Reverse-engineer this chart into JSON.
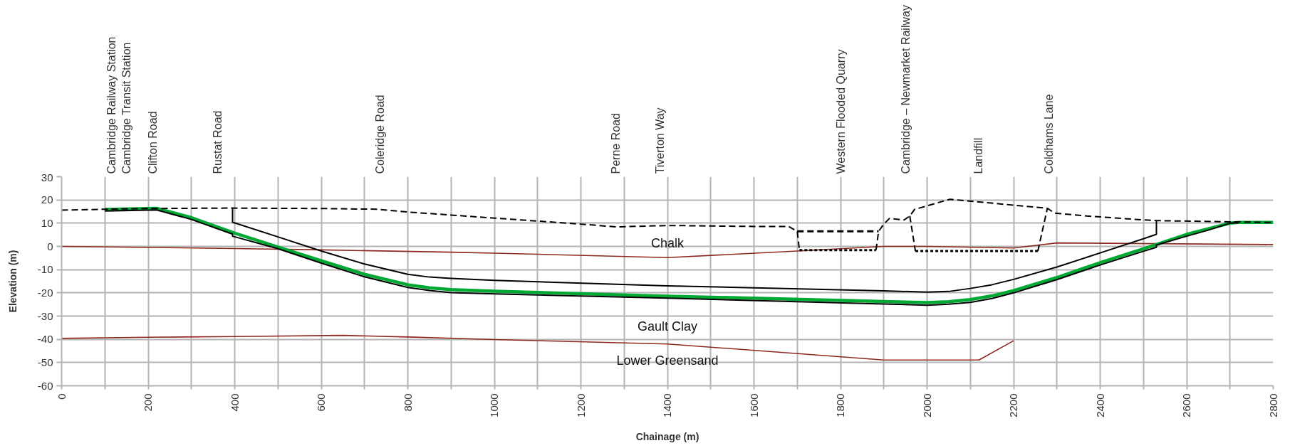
{
  "chart_data": {
    "type": "line",
    "xlabel": "Chainage (m)",
    "ylabel": "Elevation (m)",
    "xlim": [
      0,
      2800
    ],
    "ylim": [
      -60,
      30
    ],
    "xticks": [
      0,
      {
        "value": 100,
        "label": null
      },
      200,
      {
        "value": 300,
        "label": null
      },
      400,
      {
        "value": 500,
        "label": null
      },
      600,
      {
        "value": 700,
        "label": null
      },
      800,
      {
        "value": 900,
        "label": null
      },
      1000,
      {
        "value": 1100,
        "label": null
      },
      1200,
      {
        "value": 1300,
        "label": null
      },
      1400,
      {
        "value": 1500,
        "label": null
      },
      1600,
      {
        "value": 1700,
        "label": null
      },
      1800,
      {
        "value": 1900,
        "label": null
      },
      2000,
      {
        "value": 2100,
        "label": null
      },
      2200,
      {
        "value": 2300,
        "label": null
      },
      2400,
      {
        "value": 2500,
        "label": null
      },
      2600,
      {
        "value": 2700,
        "label": null
      },
      2800
    ],
    "yticks": [
      -60,
      -50,
      -40,
      -30,
      -20,
      -10,
      0,
      10,
      20,
      30
    ],
    "grid": true,
    "series": [
      {
        "color": "#8d281e",
        "line_style": "solid",
        "x": [
          0,
          400,
          600,
          900,
          1000,
          1400,
          1700,
          1900,
          2000,
          2200,
          2300,
          2800
        ],
        "values": [
          0,
          -0.9,
          -1.5,
          -2.5,
          -2.9,
          -4.8,
          -2.0,
          0,
          0,
          -0.7,
          1.5,
          0.8
        ]
      },
      {
        "color": "#8d281e",
        "line_style": "solid",
        "x": [
          0,
          200,
          400,
          650,
          800,
          1000,
          1400,
          1900,
          2120,
          2200
        ],
        "values": [
          -39.6,
          -39.1,
          -38.8,
          -38.3,
          -39.0,
          -40.1,
          -42.0,
          -48.9,
          -48.9,
          -40.6
        ]
      },
      {
        "color": "#00a933",
        "line_style": "solid",
        "x": [
          100,
          220,
          300,
          400,
          500,
          600,
          700,
          800,
          850,
          900,
          1000,
          1400,
          1900,
          2000,
          2050,
          2100,
          2150,
          2200,
          2300,
          2400,
          2500,
          2530,
          2600,
          2650,
          2700,
          2720,
          2800
        ],
        "values": [
          15.9,
          16.4,
          12.4,
          5.7,
          -0.3,
          -6.2,
          -12.0,
          -16.5,
          -17.8,
          -18.6,
          -19.3,
          -21.4,
          -23.7,
          -24.2,
          -23.8,
          -22.9,
          -21.3,
          -19.0,
          -13.4,
          -7.0,
          -1.0,
          0.8,
          5.2,
          7.6,
          10.0,
          10.3,
          10.3
        ]
      },
      {
        "color": "#000000",
        "line_style": "solid",
        "x": [
          100,
          220,
          300,
          395,
          395,
          500,
          600,
          700,
          800,
          850,
          900,
          1000,
          1400,
          1900,
          2000,
          2050,
          2100,
          2150,
          2200,
          2300,
          2400,
          2500,
          2530,
          2530,
          2600,
          2650,
          2700,
          2720
        ],
        "values": [
          15.2,
          15.7,
          11.6,
          5.3,
          4.4,
          -1.0,
          -7.2,
          -13.1,
          -17.7,
          -19.0,
          -19.9,
          -20.4,
          -22.3,
          -24.8,
          -25.3,
          -24.9,
          -24.1,
          -22.4,
          -20.0,
          -14.3,
          -8.0,
          -2.1,
          -0.4,
          0.6,
          4.4,
          7.0,
          10.0,
          10.2
        ]
      },
      {
        "color": "#000000",
        "line_style": "solid",
        "x": [
          395,
          395,
          500,
          600,
          700,
          800,
          850,
          900,
          1000,
          1400,
          1900,
          2000,
          2050,
          2100,
          2150,
          2200,
          2300,
          2400,
          2500,
          2530,
          2530
        ],
        "values": [
          16.4,
          10.4,
          4.1,
          -2.0,
          -7.6,
          -12.0,
          -13.2,
          -13.8,
          -14.6,
          -17.0,
          -19.1,
          -19.7,
          -19.4,
          -18.1,
          -16.5,
          -14.2,
          -8.9,
          -2.8,
          3.3,
          5.2,
          10.9
        ]
      },
      {
        "color": "#000000",
        "line_style": "dashed",
        "x": [
          0,
          100,
          200,
          390,
          600,
          730,
          800,
          900,
          1000,
          1200,
          1280,
          1400,
          1600,
          1680,
          1700,
          1705
        ],
        "values": [
          15.6,
          16.0,
          16.3,
          16.5,
          16.3,
          16.0,
          14.8,
          13.5,
          12.2,
          9.6,
          8.4,
          9.0,
          8.6,
          8.6,
          6.5,
          -1.6
        ]
      },
      {
        "color": "#000000",
        "line_style": "dotted",
        "x": [
          1705,
          1882
        ],
        "values": [
          -1.6,
          -1.6
        ]
      },
      {
        "color": "#000000",
        "line_style": "dashed",
        "x": [
          1700,
          1888
        ],
        "values": [
          6.5,
          6.5
        ]
      },
      {
        "color": "#000000",
        "line_style": "dashed",
        "x": [
          1882,
          1888,
          1900,
          1913,
          1947,
          1960,
          1971,
          2053,
          2278,
          2295,
          2369,
          2500,
          2530,
          2800
        ],
        "values": [
          -1.6,
          6.5,
          9.6,
          12.0,
          11.4,
          13.1,
          15.9,
          20.3,
          16.4,
          14.3,
          13.1,
          11.4,
          11.1,
          10.3
        ]
      },
      {
        "color": "#000000",
        "line_style": "dashed",
        "x": [
          1960,
          1973
        ],
        "values": [
          13.1,
          -2.0
        ]
      },
      {
        "color": "#000000",
        "line_style": "dotted",
        "x": [
          1973,
          2256
        ],
        "values": [
          -2.0,
          -2.0
        ]
      },
      {
        "color": "#000000",
        "line_style": "dashed",
        "x": [
          2256,
          2278
        ],
        "values": [
          -2.0,
          16.4
        ]
      }
    ],
    "annotations": [
      "Cambridge Railway Station",
      "Cambridge Transit Station",
      "Clifton Road",
      "Rustat Road",
      "Coleridge Road",
      "Perne Road",
      "Tiverton Way",
      "Western Flooded Quarry",
      "Cambridge – Newmarket Railway",
      "Landfill",
      "Coldhams Lane",
      "Chalk",
      "Gault Clay",
      "Lower Greensand"
    ]
  }
}
